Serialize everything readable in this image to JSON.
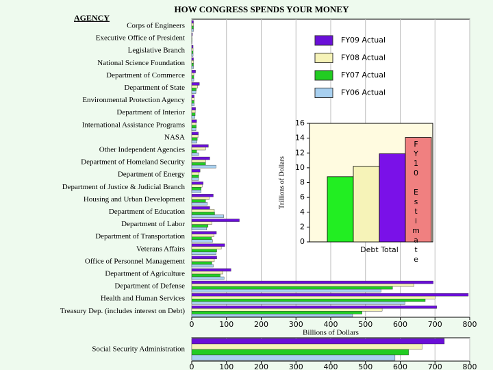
{
  "chart_data": [
    {
      "type": "hbar_grouped",
      "title": "HOW CONGRESS SPENDS YOUR MONEY",
      "category_label": "AGENCY",
      "xlabel": "Billions of Dollars",
      "categories": [
        "Corps of Engineers",
        "Executive Office of President",
        "Legislative Branch",
        "National Science Foundation",
        "Department of Commerce",
        "Department of State",
        "Environmental Protection Agency",
        "Department of Interior",
        "International Assistance Programs",
        "NASA",
        "Other Independent Agencies",
        "Department of Homeland Security",
        "Department of Energy",
        "Department of Justice & Judicial Branch",
        "Housing and Urban Development",
        "Department of Education",
        "Department of Labor",
        "Department of Transportation",
        "Veterans Affairs",
        "Office of Personnel Management",
        "Department of Agriculture",
        "Department of Defense",
        "Health and Human Services",
        "Treasury Dep. (includes interest on Debt)"
      ],
      "series": [
        {
          "name": "FY09 Actual",
          "color": "#6a0fd8",
          "values": [
            5,
            2,
            4,
            5,
            11,
            22,
            7,
            11,
            14,
            19,
            48,
            52,
            24,
            33,
            62,
            52,
            137,
            71,
            95,
            72,
            113,
            695,
            796,
            705
          ]
        },
        {
          "name": "FY08 Actual",
          "color": "#f6f3b8",
          "values": [
            5,
            1,
            4,
            5,
            6,
            17,
            7,
            10,
            12,
            18,
            40,
            40,
            21,
            30,
            50,
            65,
            58,
            64,
            85,
            65,
            90,
            640,
            700,
            548
          ]
        },
        {
          "name": "FY07 Actual",
          "color": "#22cc22",
          "values": [
            5,
            1,
            4,
            5,
            6,
            13,
            7,
            10,
            13,
            16,
            14,
            40,
            20,
            27,
            40,
            66,
            47,
            57,
            72,
            58,
            82,
            578,
            672,
            490
          ]
        },
        {
          "name": "FY06 Actual",
          "color": "#a8d0f0",
          "values": [
            5,
            1,
            4,
            5,
            6,
            12,
            7,
            9,
            12,
            15,
            20,
            70,
            20,
            27,
            45,
            92,
            43,
            60,
            70,
            62,
            93,
            545,
            614,
            463
          ]
        }
      ],
      "xlim": [
        0,
        800
      ],
      "xticks": [
        0,
        100,
        200,
        300,
        400,
        500,
        600,
        700,
        800
      ],
      "grid": true,
      "legend": "upper right"
    },
    {
      "type": "bar",
      "xlabel": "Debt Total",
      "ylabel": "Trillions of Dollars",
      "categories": [
        null,
        null,
        null,
        "FY10 Estimate"
      ],
      "values": [
        8.8,
        10.2,
        11.9,
        14.1
      ],
      "colors": [
        "#22ee22",
        "#f6f3b8",
        "#7a11e8",
        "#f08080"
      ],
      "ylim": [
        0,
        16
      ],
      "yticks": [
        0,
        2,
        4,
        6,
        8,
        10,
        12,
        14,
        16
      ]
    },
    {
      "type": "hbar_grouped",
      "categories": [
        "Social Security Administration"
      ],
      "series": [
        {
          "color": "#6a0fd8",
          "values": [
            727
          ]
        },
        {
          "color": "#f6f3b8",
          "values": [
            663
          ]
        },
        {
          "color": "#22cc22",
          "values": [
            624
          ]
        },
        {
          "color": "#a8d0f0",
          "values": [
            585
          ]
        }
      ],
      "xlim": [
        0,
        800
      ],
      "xticks": [
        0,
        100,
        200,
        300,
        400,
        500,
        600,
        700,
        800
      ],
      "grid": true
    }
  ]
}
